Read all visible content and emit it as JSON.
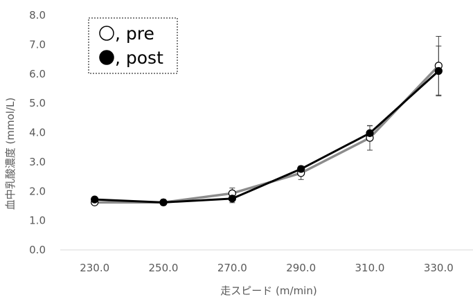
{
  "chart_data": {
    "type": "line",
    "title": "",
    "xlabel": "走スピード (m/min)",
    "ylabel": "血中乳酸濃度 (mmol/L)",
    "ylim": [
      0,
      8
    ],
    "ytick_step": 1,
    "categories": [
      "230.0",
      "250.0",
      "270.0",
      "290.0",
      "310.0",
      "330.0"
    ],
    "y_tick_labels": [
      "0.0",
      "1.0",
      "2.0",
      "3.0",
      "4.0",
      "5.0",
      "6.0",
      "7.0",
      "8.0"
    ],
    "grid": false,
    "legend_position": "top-left",
    "series": [
      {
        "name": ", pre",
        "marker": "open-circle",
        "line_color": "#8c8c8c",
        "values": [
          1.62,
          1.62,
          1.93,
          2.62,
          3.82,
          6.28
        ],
        "error": [
          0.07,
          0.07,
          0.18,
          0.22,
          0.42,
          1.0
        ]
      },
      {
        "name": ", post",
        "marker": "filled-circle",
        "line_color": "#000000",
        "values": [
          1.72,
          1.62,
          1.75,
          2.76,
          3.98,
          6.1
        ],
        "error": [
          0.05,
          0.1,
          0.14,
          0.1,
          0.25,
          0.85
        ]
      }
    ]
  }
}
